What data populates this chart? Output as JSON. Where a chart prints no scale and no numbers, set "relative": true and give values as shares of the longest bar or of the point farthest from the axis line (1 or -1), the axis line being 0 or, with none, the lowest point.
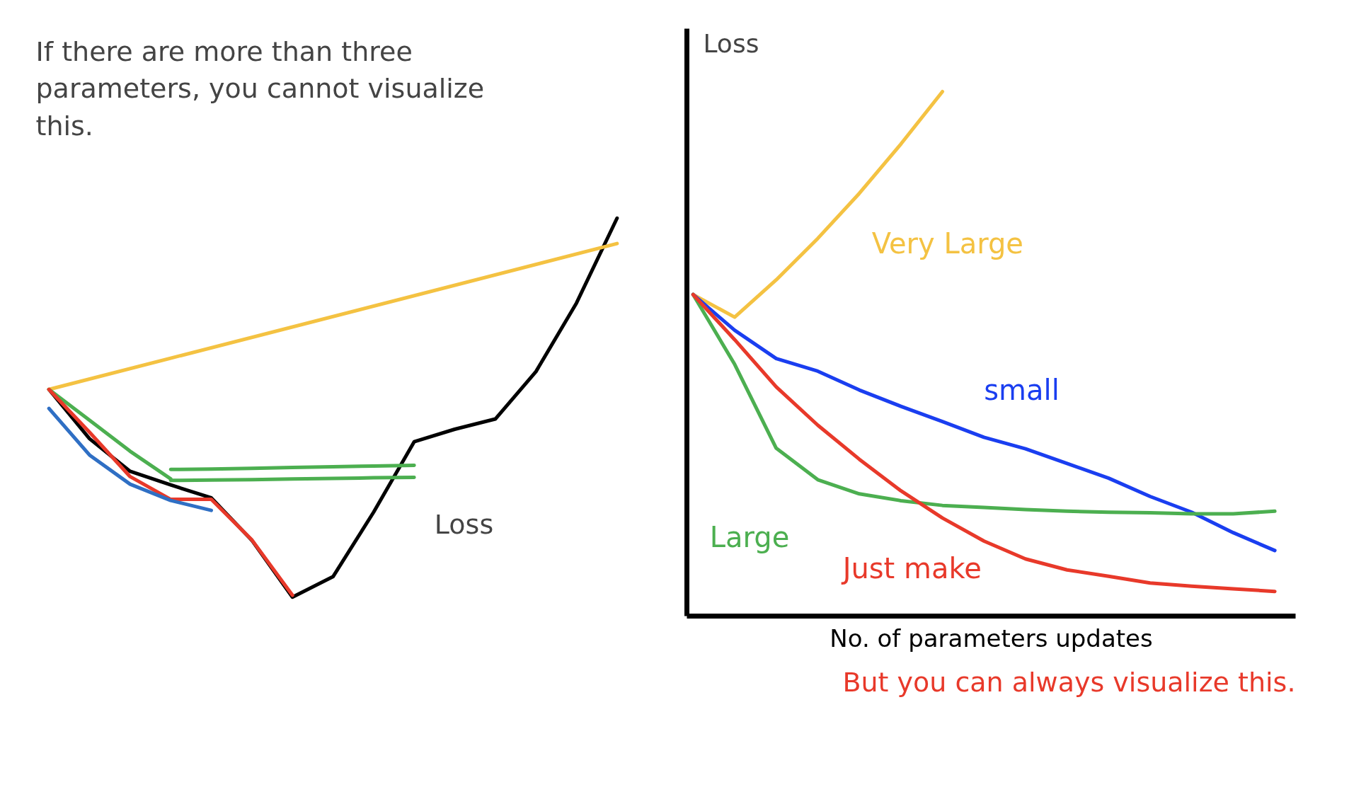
{
  "chart_data": [
    {
      "type": "line",
      "relative": true,
      "categories": [
        null,
        null,
        null,
        null,
        null,
        null,
        null,
        null,
        null,
        null,
        null,
        null,
        null,
        null,
        null
      ],
      "annotations": [
        "If there are more than three parameters, you cannot visualize this.",
        "Loss"
      ],
      "series": [
        {
          "color": "#000000",
          "values": [
            0.548,
            0.418,
            0.332,
            0.296,
            0.262,
            0.15,
            0.0,
            0.054,
            0.224,
            0.41,
            0.443,
            0.47,
            0.595,
            0.776,
            1.0
          ]
        },
        {
          "color": "#f4c242",
          "values": [
            0.548,
            null,
            null,
            null,
            null,
            null,
            null,
            null,
            null,
            null,
            null,
            null,
            null,
            null,
            0.933
          ]
        },
        {
          "color": "#4caf50",
          "values": [
            0.548,
            0.467,
            0.385,
            0.312,
            null,
            null,
            null,
            null,
            null,
            null,
            null,
            null,
            null,
            null,
            null
          ]
        },
        {
          "color": "#4caf50",
          "values": [
            null,
            null,
            null,
            0.337,
            0.338,
            0.34,
            0.342,
            0.344,
            0.346,
            0.348,
            null,
            null,
            null,
            null,
            null
          ]
        },
        {
          "color": "#4caf50",
          "values": [
            null,
            null,
            null,
            0.308,
            0.309,
            0.31,
            0.312,
            0.313,
            0.315,
            0.316,
            null,
            null,
            null,
            null,
            null
          ]
        },
        {
          "color": "#e8392a",
          "values": [
            0.548,
            0.435,
            0.318,
            0.258,
            0.258,
            0.151,
            0.005,
            null,
            null,
            null,
            null,
            null,
            null,
            null,
            null
          ]
        },
        {
          "color": "#2f6fc4",
          "values": [
            0.498,
            0.375,
            0.298,
            0.255,
            0.229,
            null,
            null,
            null,
            null,
            null,
            null,
            null,
            null,
            null,
            null
          ]
        }
      ]
    },
    {
      "type": "line",
      "relative": true,
      "categories": [
        null,
        null,
        null,
        null,
        null,
        null,
        null,
        null,
        null,
        null,
        null,
        null,
        null,
        null,
        null
      ],
      "xlabel": "No. of parameters updates",
      "annotations": [
        "Loss",
        "But you can always visualize this."
      ],
      "series": [
        {
          "name": "Very Large",
          "color": "#f4c242",
          "values": [
            0.613,
            0.57,
            0.641,
            0.72,
            0.806,
            0.9,
            1.0,
            null,
            null,
            null,
            null,
            null,
            null,
            null,
            null
          ]
        },
        {
          "name": "small",
          "color": "#1a3ef0",
          "values": [
            0.613,
            0.545,
            0.491,
            0.467,
            0.431,
            0.4,
            0.371,
            0.341,
            0.319,
            0.291,
            0.263,
            0.228,
            0.198,
            0.159,
            0.125
          ]
        },
        {
          "name": "Large",
          "color": "#4caf50",
          "values": [
            0.613,
            0.48,
            0.32,
            0.26,
            0.233,
            0.22,
            0.211,
            0.207,
            0.203,
            0.2,
            0.198,
            0.197,
            0.195,
            0.195,
            0.2
          ]
        },
        {
          "name": "Just make",
          "color": "#e8392a",
          "values": [
            0.613,
            0.527,
            0.437,
            0.364,
            0.299,
            0.239,
            0.187,
            0.143,
            0.109,
            0.088,
            0.076,
            0.063,
            0.057,
            0.052,
            0.047
          ]
        }
      ]
    }
  ]
}
